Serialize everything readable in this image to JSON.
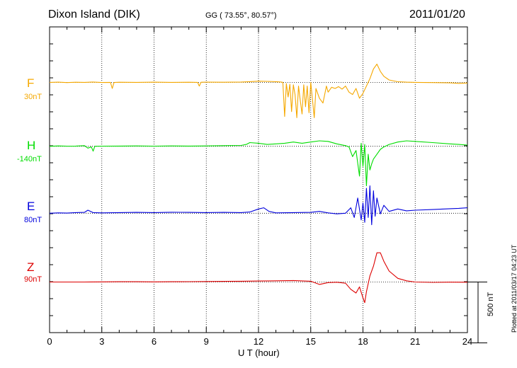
{
  "header": {
    "station": "Dixon Island (DIK)",
    "coords": "GG ( 73.55°,  80.57°)",
    "date": "2011/01/20"
  },
  "footer": {
    "plotted": "Plotted at 2011/03/17 04:23 UT"
  },
  "chart_data": {
    "type": "line",
    "xlabel": "U T (hour)",
    "xlim": [
      0,
      24
    ],
    "xticks": [
      0,
      3,
      6,
      9,
      12,
      15,
      18,
      21,
      24
    ],
    "grid": true,
    "scale_bar": {
      "label": "500 nT",
      "value": 500
    },
    "series": [
      {
        "name": "F",
        "offset_label": "30nT",
        "color": "#f5a800",
        "baseline_nT": 1550,
        "x": [
          0,
          0.5,
          1,
          1.5,
          2,
          2.5,
          3,
          3.5,
          3.6,
          3.7,
          4,
          5,
          6,
          7,
          8,
          8.5,
          8.6,
          8.7,
          9,
          10,
          11,
          11.5,
          12,
          12.5,
          13,
          13.3,
          13.4,
          13.5,
          13.6,
          13.7,
          13.8,
          13.9,
          14,
          14.1,
          14.2,
          14.3,
          14.4,
          14.5,
          14.6,
          14.7,
          14.8,
          14.9,
          15,
          15.1,
          15.2,
          15.3,
          15.5,
          15.7,
          15.9,
          16,
          16.2,
          16.4,
          16.6,
          16.8,
          17,
          17.2,
          17.4,
          17.6,
          17.8,
          18,
          18.2,
          18.4,
          18.6,
          18.8,
          19,
          19.2,
          19.5,
          20,
          20.5,
          21,
          22,
          23,
          23.5,
          24
        ],
        "y": [
          1550,
          1552,
          1548,
          1551,
          1550,
          1553,
          1549,
          1550,
          1500,
          1549,
          1551,
          1550,
          1552,
          1550,
          1551,
          1550,
          1520,
          1551,
          1552,
          1551,
          1553,
          1556,
          1560,
          1558,
          1556,
          1553,
          1550,
          1270,
          1540,
          1430,
          1535,
          1310,
          1530,
          1450,
          1260,
          1520,
          1400,
          1290,
          1530,
          1350,
          1520,
          1300,
          1550,
          1410,
          1260,
          1500,
          1420,
          1380,
          1520,
          1470,
          1510,
          1500,
          1515,
          1495,
          1520,
          1470,
          1450,
          1500,
          1420,
          1460,
          1520,
          1580,
          1660,
          1700,
          1640,
          1600,
          1570,
          1555,
          1552,
          1550,
          1548,
          1546,
          1542,
          1545
        ]
      },
      {
        "name": "H",
        "offset_label": "-140nT",
        "color": "#00dd00",
        "baseline_nT": 1025,
        "x": [
          0,
          0.5,
          1,
          1.5,
          2,
          2.2,
          2.4,
          2.5,
          2.6,
          3,
          4,
          5,
          6,
          7,
          8,
          9,
          10,
          11,
          11.3,
          11.5,
          12,
          12.5,
          13,
          13.5,
          14,
          14.5,
          15,
          15.5,
          16,
          16.5,
          17,
          17.2,
          17.4,
          17.6,
          17.8,
          17.9,
          18,
          18.1,
          18.2,
          18.3,
          18.4,
          18.5,
          18.6,
          18.8,
          19,
          19.2,
          19.5,
          20,
          20.5,
          21,
          22,
          23,
          23.5,
          24
        ],
        "y": [
          1025,
          1028,
          1026,
          1027,
          1030,
          1010,
          1020,
          985,
          1025,
          1026,
          1027,
          1028,
          1026,
          1028,
          1027,
          1028,
          1030,
          1032,
          1040,
          1055,
          1050,
          1040,
          1045,
          1050,
          1060,
          1050,
          1060,
          1070,
          1065,
          1045,
          1030,
          1020,
          940,
          990,
          780,
          1050,
          860,
          1040,
          700,
          960,
          830,
          880,
          920,
          960,
          1000,
          1020,
          1040,
          1060,
          1070,
          1065,
          1055,
          1045,
          1040,
          1035
        ]
      },
      {
        "name": "E",
        "offset_label": "80nT",
        "color": "#0000dd",
        "baseline_nT": 475,
        "x": [
          0,
          0.5,
          1,
          1.5,
          2,
          2.2,
          2.5,
          3,
          4,
          5,
          6,
          7,
          8,
          9,
          10,
          11,
          11.5,
          12,
          12.3,
          12.6,
          13,
          14,
          15,
          15.5,
          16,
          16.5,
          17,
          17.3,
          17.5,
          17.7,
          17.9,
          18,
          18.1,
          18.2,
          18.3,
          18.4,
          18.5,
          18.6,
          18.7,
          18.8,
          19,
          19.2,
          19.5,
          20,
          20.5,
          21,
          22,
          23,
          23.5,
          24
        ],
        "y": [
          475,
          478,
          476,
          480,
          482,
          500,
          480,
          478,
          480,
          482,
          480,
          483,
          482,
          480,
          482,
          480,
          485,
          510,
          520,
          490,
          478,
          480,
          482,
          490,
          478,
          470,
          475,
          520,
          440,
          600,
          420,
          560,
          400,
          680,
          440,
          700,
          380,
          660,
          450,
          600,
          470,
          540,
          490,
          510,
          495,
          500,
          505,
          512,
          515,
          520
        ]
      },
      {
        "name": "Z",
        "offset_label": "90nT",
        "color": "#dd0000",
        "baseline_nT": -90,
        "x": [
          0,
          1,
          2,
          3,
          4,
          5,
          6,
          7,
          8,
          9,
          10,
          11,
          12,
          13,
          14,
          15,
          15.5,
          16,
          16.5,
          17,
          17.3,
          17.6,
          17.8,
          18,
          18.1,
          18.2,
          18.4,
          18.6,
          18.8,
          19,
          19.2,
          19.5,
          20,
          20.5,
          21,
          22,
          23,
          24
        ],
        "y": [
          -90,
          -90,
          -90,
          -89,
          -88,
          -88,
          -89,
          -88,
          -87,
          -86,
          -85,
          -84,
          -82,
          -80,
          -78,
          -84,
          -110,
          -95,
          -92,
          -100,
          -150,
          -180,
          -130,
          -220,
          -260,
          -170,
          -40,
          40,
          150,
          150,
          80,
          0,
          -60,
          -80,
          -90,
          -93,
          -91,
          -92
        ]
      }
    ]
  }
}
